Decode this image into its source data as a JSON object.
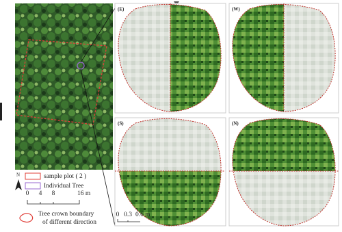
{
  "figure": {
    "panels": [
      {
        "label": "(E)"
      },
      {
        "label": "(W)"
      },
      {
        "label": "(S)"
      },
      {
        "label": "(N)"
      }
    ],
    "legend": {
      "items": [
        "sample plot ( 2 )",
        "Individual Tree"
      ],
      "north": "N",
      "scale_large": [
        "0",
        "4",
        "8",
        "16 m"
      ],
      "crown_boundary": [
        "Tree crown boundary",
        "of different direction"
      ],
      "scale_small": [
        "0",
        "0.3",
        "0.6 m"
      ]
    }
  }
}
